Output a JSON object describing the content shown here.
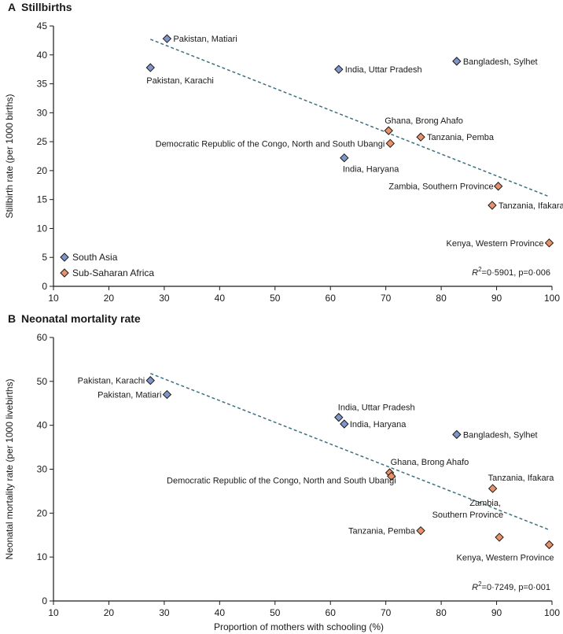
{
  "colors": {
    "south_asia": "#8096c8",
    "sub_saharan_africa": "#e8916b",
    "marker_edge": "#1a1a1a",
    "trend": "#3d7080",
    "axis": "#1a1a1a"
  },
  "chart_data": [
    {
      "type": "scatter",
      "panel_letter": "A",
      "title": "Stillbirths",
      "xlabel": "",
      "ylabel": "Stillbirth rate (per 1000 births)",
      "xlim": [
        10,
        100
      ],
      "ylim": [
        0,
        45
      ],
      "xticks": [
        "10",
        "20",
        "30",
        "40",
        "50",
        "60",
        "70",
        "80",
        "90",
        "100"
      ],
      "yticks": [
        "0",
        "5",
        "10",
        "15",
        "20",
        "25",
        "30",
        "35",
        "40",
        "45"
      ],
      "annotation": {
        "prefix": "R",
        "sup": "2",
        "text": "=0·5901, p=0·006"
      },
      "legend": [
        {
          "name": "South Asia",
          "group": "south_asia"
        },
        {
          "name": "Sub-Saharan Africa",
          "group": "sub_saharan_africa"
        }
      ],
      "trend": {
        "x": [
          27.5,
          99.5
        ],
        "y": [
          42.7,
          15.5
        ]
      },
      "points": [
        {
          "label": "Pakistan, Matiari",
          "x": 30.5,
          "y": 42.8,
          "group": "south_asia"
        },
        {
          "label": "Pakistan, Karachi",
          "x": 27.5,
          "y": 37.8,
          "group": "south_asia"
        },
        {
          "label": "India, Uttar Pradesh",
          "x": 61.5,
          "y": 37.5,
          "group": "south_asia"
        },
        {
          "label": "Bangladesh, Sylhet",
          "x": 82.8,
          "y": 38.9,
          "group": "south_asia"
        },
        {
          "label": "India, Haryana",
          "x": 62.5,
          "y": 22.2,
          "group": "south_asia"
        },
        {
          "label": "Ghana, Brong Ahafo",
          "x": 70.5,
          "y": 26.9,
          "group": "sub_saharan_africa"
        },
        {
          "label": "Democratic Republic of the Congo, North and South Ubangi",
          "x": 70.8,
          "y": 24.7,
          "group": "sub_saharan_africa"
        },
        {
          "label": "Tanzania, Pemba",
          "x": 76.3,
          "y": 25.8,
          "group": "sub_saharan_africa"
        },
        {
          "label": "Zambia, Southern Province",
          "x": 90.3,
          "y": 17.3,
          "group": "sub_saharan_africa"
        },
        {
          "label": "Tanzania, Ifakara",
          "x": 89.2,
          "y": 14.0,
          "group": "sub_saharan_africa"
        },
        {
          "label": "Kenya, Western Province",
          "x": 99.5,
          "y": 7.5,
          "group": "sub_saharan_africa"
        }
      ]
    },
    {
      "type": "scatter",
      "panel_letter": "B",
      "title": "Neonatal mortality rate",
      "xlabel": "Proportion of mothers with schooling (%)",
      "ylabel": "Neonatal mortality rate (per 1000 livebirths)",
      "xlim": [
        10,
        100
      ],
      "ylim": [
        0,
        60
      ],
      "xticks": [
        "10",
        "20",
        "30",
        "40",
        "50",
        "60",
        "70",
        "80",
        "90",
        "100"
      ],
      "yticks": [
        "0",
        "10",
        "20",
        "30",
        "40",
        "50",
        "60"
      ],
      "annotation": {
        "prefix": "R",
        "sup": "2",
        "text": "=0·7249, p=0·001"
      },
      "trend": {
        "x": [
          27.5,
          99.5
        ],
        "y": [
          51.8,
          16.2
        ]
      },
      "points": [
        {
          "label": "Pakistan, Karachi",
          "x": 27.5,
          "y": 50.2,
          "group": "south_asia"
        },
        {
          "label": "Pakistan, Matiari",
          "x": 30.5,
          "y": 47.0,
          "group": "south_asia"
        },
        {
          "label": "India, Uttar Pradesh",
          "x": 61.5,
          "y": 41.8,
          "group": "south_asia"
        },
        {
          "label": "India, Haryana",
          "x": 62.5,
          "y": 40.3,
          "group": "south_asia"
        },
        {
          "label": "Bangladesh, Sylhet",
          "x": 82.8,
          "y": 37.9,
          "group": "south_asia"
        },
        {
          "label": "Ghana, Brong Ahafo",
          "x": 70.7,
          "y": 29.2,
          "group": "sub_saharan_africa"
        },
        {
          "label": "Democratic Republic of the Congo, North and South Ubangi",
          "x": 71.0,
          "y": 28.4,
          "group": "sub_saharan_africa"
        },
        {
          "label": "Tanzania, Ifakara",
          "x": 89.3,
          "y": 25.6,
          "group": "sub_saharan_africa"
        },
        {
          "label": "Tanzania, Pemba",
          "x": 76.3,
          "y": 16.0,
          "group": "sub_saharan_africa"
        },
        {
          "label": "Zambia, Southern Province",
          "x": 90.5,
          "y": 14.5,
          "group": "sub_saharan_africa"
        },
        {
          "label": "Kenya, Western Province",
          "x": 99.5,
          "y": 12.8,
          "group": "sub_saharan_africa"
        }
      ]
    }
  ]
}
